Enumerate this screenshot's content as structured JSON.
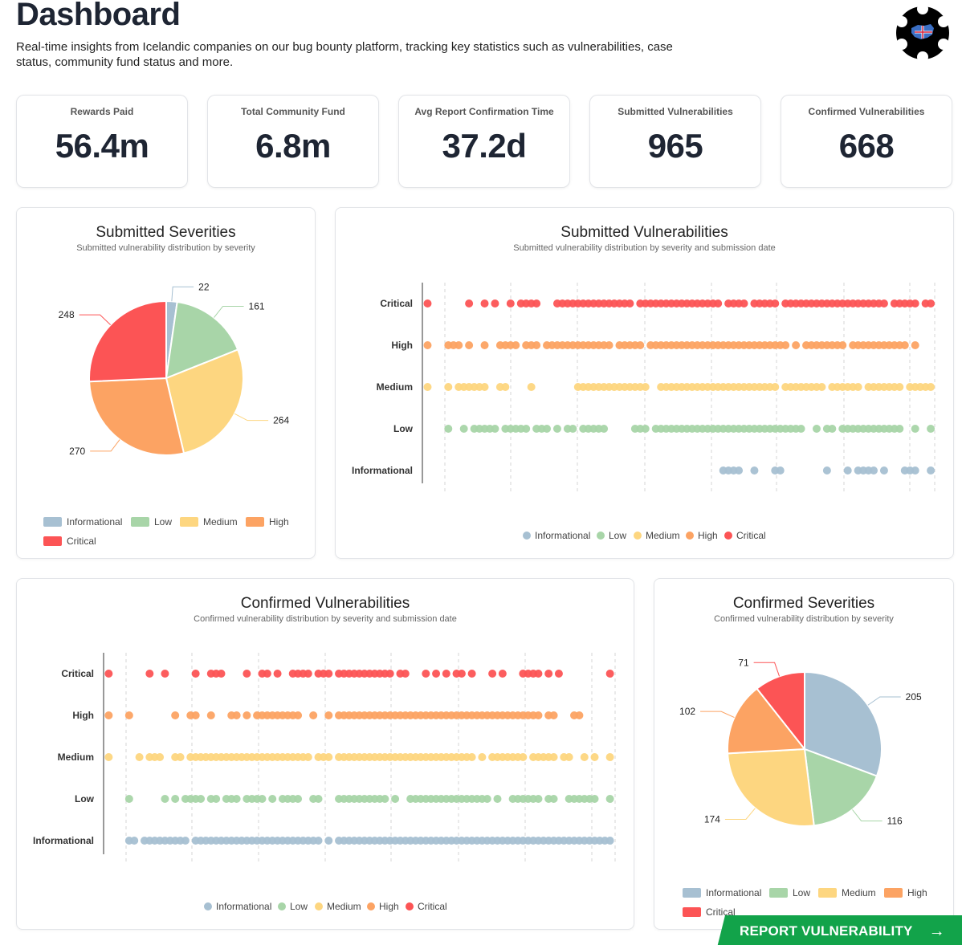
{
  "header": {
    "title": "Dashboard",
    "description": "Real-time insights from Icelandic companies on our bug bounty platform, tracking key statistics such as vulnerabilities, case status, community fund status and more."
  },
  "stats": [
    {
      "label": "Rewards Paid",
      "value": "56.4m"
    },
    {
      "label": "Total Community Fund",
      "value": "6.8m"
    },
    {
      "label": "Avg Report Confirmation Time",
      "value": "37.2d"
    },
    {
      "label": "Submitted Vulnerabilities",
      "value": "965"
    },
    {
      "label": "Confirmed Vulnerabilities",
      "value": "668"
    }
  ],
  "colors": {
    "Informational": "#a7c0d2",
    "Low": "#a8d5a8",
    "Medium": "#fdd680",
    "High": "#fca363",
    "Critical": "#fc5455"
  },
  "panels": {
    "submitted_severities": {
      "title": "Submitted Severities",
      "subtitle": "Submitted vulnerability distribution by severity"
    },
    "submitted_vulns": {
      "title": "Submitted Vulnerabilities",
      "subtitle": "Submitted vulnerability distribution by severity and submission date"
    },
    "confirmed_vulns": {
      "title": "Confirmed Vulnerabilities",
      "subtitle": "Confirmed vulnerability distribution by severity and submission date"
    },
    "confirmed_severities": {
      "title": "Confirmed Severities",
      "subtitle": "Confirmed vulnerability distribution by severity"
    }
  },
  "legend": [
    "Informational",
    "Low",
    "Medium",
    "High",
    "Critical"
  ],
  "chart_data": [
    {
      "id": "submitted_severities",
      "type": "pie",
      "title": "Submitted Severities",
      "labels": [
        "Informational",
        "Low",
        "Medium",
        "High",
        "Critical"
      ],
      "values": [
        22,
        161,
        264,
        270,
        248
      ]
    },
    {
      "id": "submitted_vulns",
      "type": "scatter",
      "title": "Submitted Vulnerabilities",
      "categories": [
        "Critical",
        "High",
        "Medium",
        "Low",
        "Informational"
      ],
      "x_range": [
        0,
        100
      ],
      "series": [
        {
          "name": "Critical",
          "x": [
            1,
            9,
            12,
            14,
            17,
            19,
            20,
            21,
            22,
            26,
            27,
            28,
            29,
            30,
            31,
            32,
            33,
            34,
            35,
            36,
            37,
            38,
            39,
            40,
            42,
            43,
            44,
            45,
            46,
            47,
            48,
            49,
            50,
            51,
            52,
            53,
            54,
            55,
            56,
            57,
            59,
            60,
            61,
            62,
            64,
            65,
            66,
            67,
            68,
            70,
            71,
            72,
            73,
            74,
            75,
            76,
            77,
            78,
            79,
            80,
            81,
            82,
            83,
            84,
            85,
            86,
            87,
            88,
            89,
            91,
            92,
            93,
            94,
            95,
            97,
            98
          ]
        },
        {
          "name": "High",
          "x": [
            1,
            5,
            6,
            7,
            9,
            12,
            15,
            16,
            17,
            18,
            20,
            21,
            22,
            24,
            25,
            26,
            27,
            28,
            29,
            30,
            31,
            32,
            33,
            34,
            35,
            36,
            38,
            39,
            40,
            41,
            42,
            44,
            45,
            46,
            47,
            48,
            49,
            50,
            51,
            52,
            53,
            54,
            55,
            56,
            57,
            58,
            59,
            60,
            61,
            62,
            63,
            64,
            65,
            66,
            67,
            68,
            69,
            70,
            72,
            74,
            75,
            76,
            77,
            78,
            79,
            80,
            81,
            83,
            84,
            85,
            86,
            87,
            88,
            89,
            90,
            91,
            92,
            93,
            95
          ]
        },
        {
          "name": "Medium",
          "x": [
            1,
            5,
            7,
            8,
            9,
            10,
            11,
            12,
            15,
            16,
            21,
            30,
            31,
            32,
            33,
            34,
            35,
            36,
            37,
            38,
            39,
            40,
            41,
            42,
            43,
            46,
            47,
            48,
            49,
            50,
            51,
            52,
            53,
            54,
            55,
            56,
            57,
            58,
            59,
            60,
            61,
            62,
            63,
            64,
            65,
            66,
            67,
            68,
            70,
            71,
            72,
            73,
            74,
            75,
            76,
            77,
            79,
            80,
            81,
            82,
            83,
            84,
            86,
            87,
            88,
            89,
            90,
            91,
            92,
            94,
            95,
            96,
            97,
            98
          ]
        },
        {
          "name": "Low",
          "x": [
            5,
            8,
            10,
            11,
            12,
            13,
            14,
            16,
            17,
            18,
            19,
            20,
            22,
            23,
            24,
            26,
            28,
            29,
            31,
            32,
            33,
            34,
            35,
            41,
            42,
            43,
            45,
            46,
            47,
            48,
            49,
            50,
            51,
            52,
            53,
            54,
            55,
            56,
            57,
            58,
            59,
            60,
            61,
            62,
            63,
            64,
            65,
            66,
            67,
            68,
            69,
            70,
            71,
            72,
            73,
            76,
            78,
            79,
            81,
            82,
            83,
            84,
            85,
            86,
            87,
            88,
            89,
            90,
            91,
            92,
            95,
            98
          ]
        },
        {
          "name": "Informational",
          "x": [
            58,
            59,
            60,
            61,
            64,
            68,
            69,
            78,
            82,
            84,
            85,
            86,
            87,
            89,
            93,
            94,
            95,
            98
          ]
        }
      ]
    },
    {
      "id": "confirmed_vulns",
      "type": "scatter",
      "title": "Confirmed Vulnerabilities",
      "categories": [
        "Critical",
        "High",
        "Medium",
        "Low",
        "Informational"
      ],
      "x_range": [
        0,
        100
      ],
      "series": [
        {
          "name": "Critical",
          "x": [
            1,
            9,
            12,
            18,
            21,
            22,
            23,
            28,
            31,
            32,
            34,
            37,
            38,
            39,
            40,
            42,
            43,
            44,
            46,
            47,
            48,
            49,
            50,
            51,
            52,
            53,
            54,
            55,
            56,
            58,
            59,
            63,
            65,
            67,
            69,
            70,
            72,
            76,
            78,
            82,
            83,
            84,
            85,
            87,
            89,
            99
          ]
        },
        {
          "name": "High",
          "x": [
            1,
            5,
            14,
            17,
            18,
            21,
            25,
            26,
            28,
            30,
            31,
            32,
            33,
            34,
            35,
            36,
            37,
            38,
            41,
            44,
            46,
            47,
            48,
            49,
            50,
            51,
            52,
            53,
            54,
            55,
            56,
            57,
            58,
            59,
            60,
            61,
            62,
            63,
            64,
            65,
            66,
            67,
            68,
            69,
            70,
            71,
            72,
            73,
            74,
            75,
            76,
            77,
            78,
            79,
            80,
            81,
            82,
            83,
            84,
            85,
            87,
            88,
            92,
            93
          ]
        },
        {
          "name": "Medium",
          "x": [
            1,
            7,
            9,
            10,
            11,
            14,
            15,
            17,
            18,
            19,
            20,
            21,
            22,
            23,
            24,
            25,
            26,
            27,
            28,
            29,
            30,
            31,
            32,
            33,
            34,
            35,
            36,
            37,
            38,
            39,
            40,
            42,
            43,
            44,
            46,
            47,
            48,
            49,
            50,
            51,
            52,
            53,
            54,
            55,
            56,
            57,
            58,
            59,
            60,
            61,
            62,
            63,
            64,
            65,
            66,
            67,
            68,
            69,
            70,
            71,
            72,
            74,
            76,
            77,
            78,
            79,
            80,
            81,
            82,
            84,
            85,
            86,
            87,
            88,
            90,
            91,
            94,
            96,
            99
          ]
        },
        {
          "name": "Low",
          "x": [
            5,
            12,
            14,
            16,
            17,
            18,
            19,
            21,
            22,
            24,
            25,
            26,
            28,
            29,
            30,
            31,
            33,
            35,
            36,
            37,
            38,
            41,
            42,
            46,
            47,
            48,
            49,
            50,
            51,
            52,
            53,
            54,
            55,
            57,
            60,
            61,
            62,
            63,
            64,
            65,
            66,
            67,
            68,
            69,
            70,
            71,
            72,
            73,
            74,
            75,
            77,
            80,
            81,
            82,
            83,
            84,
            85,
            87,
            88,
            91,
            92,
            93,
            94,
            95,
            96,
            99
          ]
        },
        {
          "name": "Informational",
          "x": [
            5,
            6,
            8,
            9,
            10,
            11,
            12,
            13,
            14,
            15,
            16,
            18,
            19,
            20,
            21,
            22,
            23,
            24,
            25,
            26,
            27,
            28,
            29,
            30,
            31,
            32,
            33,
            34,
            35,
            36,
            37,
            38,
            39,
            40,
            41,
            42,
            44,
            46,
            47,
            48,
            49,
            50,
            51,
            52,
            53,
            54,
            55,
            56,
            57,
            58,
            59,
            60,
            61,
            62,
            63,
            64,
            65,
            66,
            67,
            68,
            69,
            70,
            71,
            72,
            73,
            74,
            75,
            76,
            77,
            78,
            79,
            80,
            81,
            82,
            83,
            84,
            85,
            86,
            87,
            88,
            89,
            90,
            91,
            92,
            93,
            94,
            95,
            96,
            97,
            98,
            99
          ]
        }
      ]
    },
    {
      "id": "confirmed_severities",
      "type": "pie",
      "title": "Confirmed Severities",
      "labels": [
        "Informational",
        "Low",
        "Medium",
        "High",
        "Critical"
      ],
      "values": [
        205,
        116,
        174,
        102,
        71
      ]
    }
  ],
  "cta": {
    "label": "REPORT VULNERABILITY",
    "arrow": "→"
  }
}
